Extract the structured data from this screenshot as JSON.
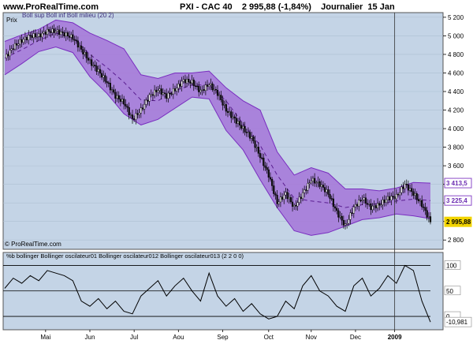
{
  "header": {
    "site": "www.ProRealTime.com",
    "title": "PXI - CAC 40    2 995,88 (-1,84%)    Journalier  15 Jan"
  },
  "price_panel": {
    "label": "Prix",
    "legend": "Boll sup Boll inf Boll milieu (20 2)",
    "copyright": "© ProRealTime.com",
    "y_ticks": [
      5200,
      5000,
      4800,
      4600,
      4400,
      4200,
      4000,
      3800,
      3600,
      3400,
      3200,
      3000,
      2800
    ],
    "y_tick_labels": [
      "5 200",
      "5 000",
      "4 800",
      "4 600",
      "4 400",
      "4 200",
      "4 000",
      "3 800",
      "3 600",
      "3 400",
      "3 200",
      "3 000",
      "2 800"
    ],
    "badges": [
      {
        "label": "3 413,5",
        "value": 3413.5,
        "color": "#8b4bc8"
      },
      {
        "label": "3 225,4",
        "value": 3225.4,
        "color": "#8b4bc8"
      },
      {
        "label": "2 995,88",
        "value": 2995.88,
        "color": "#f2d400"
      }
    ]
  },
  "osc_panel": {
    "legend": "%b bollinger Bollinger oscilateur01 Bollinger oscilateur012 Bollinger oscilateur013 (2 2 0 0)",
    "level_labels": [
      "100",
      "50",
      "0"
    ],
    "last_label": "-10,981"
  },
  "x_axis": {
    "labels": [
      "Mai",
      "Jun",
      "Jul",
      "Aou",
      "Sep",
      "Oct",
      "Nov",
      "Dec",
      "2009"
    ]
  },
  "colors": {
    "background": "#c4d4e6",
    "band_fill": "#a574d8",
    "band_edge": "#7a2ec0",
    "candle_up": "#f0f0f0",
    "candle_down": "#111111"
  },
  "chart_data": {
    "type": "candlestick",
    "title": "PXI - CAC 40",
    "interval": "Journalier",
    "last_close": 2995.88,
    "change_pct": -1.84,
    "ylim": [
      2700,
      5250
    ],
    "x": [
      "Mai",
      "Jun",
      "Jul",
      "Aou",
      "Sep",
      "Oct",
      "Nov",
      "Dec",
      "2009"
    ],
    "close_path": [
      [
        0,
        4760
      ],
      [
        5,
        4880
      ],
      [
        10,
        4950
      ],
      [
        15,
        5000
      ],
      [
        20,
        5000
      ],
      [
        25,
        5050
      ],
      [
        30,
        5050
      ],
      [
        35,
        5020
      ],
      [
        40,
        4980
      ],
      [
        45,
        4850
      ],
      [
        50,
        4720
      ],
      [
        55,
        4620
      ],
      [
        60,
        4500
      ],
      [
        65,
        4350
      ],
      [
        70,
        4280
      ],
      [
        75,
        4100
      ],
      [
        80,
        4200
      ],
      [
        85,
        4350
      ],
      [
        90,
        4420
      ],
      [
        95,
        4350
      ],
      [
        100,
        4420
      ],
      [
        105,
        4520
      ],
      [
        110,
        4500
      ],
      [
        115,
        4400
      ],
      [
        120,
        4480
      ],
      [
        125,
        4380
      ],
      [
        130,
        4200
      ],
      [
        135,
        4100
      ],
      [
        140,
        4000
      ],
      [
        145,
        3900
      ],
      [
        150,
        3700
      ],
      [
        155,
        3500
      ],
      [
        160,
        3200
      ],
      [
        165,
        3300
      ],
      [
        170,
        3150
      ],
      [
        175,
        3300
      ],
      [
        180,
        3450
      ],
      [
        185,
        3400
      ],
      [
        190,
        3300
      ],
      [
        195,
        3100
      ],
      [
        200,
        2950
      ],
      [
        205,
        3150
      ],
      [
        210,
        3250
      ],
      [
        215,
        3150
      ],
      [
        220,
        3180
      ],
      [
        225,
        3250
      ],
      [
        230,
        3270
      ],
      [
        235,
        3400
      ],
      [
        240,
        3300
      ],
      [
        245,
        3180
      ],
      [
        250,
        2996
      ]
    ],
    "bollinger_upper": [
      [
        0,
        4940
      ],
      [
        10,
        5010
      ],
      [
        20,
        5070
      ],
      [
        30,
        5170
      ],
      [
        40,
        5140
      ],
      [
        50,
        5030
      ],
      [
        60,
        4950
      ],
      [
        70,
        4860
      ],
      [
        80,
        4580
      ],
      [
        90,
        4540
      ],
      [
        100,
        4600
      ],
      [
        110,
        4600
      ],
      [
        120,
        4620
      ],
      [
        130,
        4440
      ],
      [
        140,
        4300
      ],
      [
        150,
        4200
      ],
      [
        160,
        3750
      ],
      [
        170,
        3500
      ],
      [
        180,
        3580
      ],
      [
        190,
        3520
      ],
      [
        200,
        3350
      ],
      [
        210,
        3350
      ],
      [
        220,
        3330
      ],
      [
        230,
        3360
      ],
      [
        240,
        3420
      ],
      [
        250,
        3413.5
      ]
    ],
    "bollinger_lower": [
      [
        0,
        4580
      ],
      [
        10,
        4700
      ],
      [
        20,
        4830
      ],
      [
        30,
        4880
      ],
      [
        40,
        4820
      ],
      [
        50,
        4560
      ],
      [
        60,
        4380
      ],
      [
        70,
        4160
      ],
      [
        80,
        4040
      ],
      [
        90,
        4100
      ],
      [
        100,
        4220
      ],
      [
        110,
        4340
      ],
      [
        120,
        4320
      ],
      [
        130,
        3980
      ],
      [
        140,
        3770
      ],
      [
        150,
        3450
      ],
      [
        160,
        3150
      ],
      [
        170,
        2900
      ],
      [
        180,
        2850
      ],
      [
        190,
        2880
      ],
      [
        200,
        2950
      ],
      [
        210,
        3020
      ],
      [
        220,
        3040
      ],
      [
        230,
        3080
      ],
      [
        240,
        3060
      ],
      [
        250,
        3030
      ]
    ],
    "bollinger_middle": [
      [
        0,
        4760
      ],
      [
        10,
        4850
      ],
      [
        20,
        4950
      ],
      [
        30,
        5030
      ],
      [
        40,
        4980
      ],
      [
        50,
        4800
      ],
      [
        60,
        4660
      ],
      [
        70,
        4500
      ],
      [
        80,
        4310
      ],
      [
        90,
        4300
      ],
      [
        100,
        4410
      ],
      [
        110,
        4470
      ],
      [
        120,
        4470
      ],
      [
        130,
        4300
      ],
      [
        140,
        4050
      ],
      [
        150,
        3820
      ],
      [
        160,
        3500
      ],
      [
        170,
        3250
      ],
      [
        180,
        3220
      ],
      [
        190,
        3200
      ],
      [
        200,
        3150
      ],
      [
        210,
        3180
      ],
      [
        220,
        3190
      ],
      [
        230,
        3220
      ],
      [
        240,
        3240
      ],
      [
        250,
        3225.4
      ]
    ],
    "oscillator": {
      "name": "%b bollinger",
      "levels": [
        100,
        50,
        0
      ],
      "last": -10.981,
      "values": [
        [
          0,
          55
        ],
        [
          5,
          75
        ],
        [
          10,
          65
        ],
        [
          15,
          80
        ],
        [
          20,
          70
        ],
        [
          25,
          90
        ],
        [
          30,
          85
        ],
        [
          35,
          80
        ],
        [
          40,
          70
        ],
        [
          45,
          30
        ],
        [
          50,
          20
        ],
        [
          55,
          35
        ],
        [
          60,
          15
        ],
        [
          65,
          30
        ],
        [
          70,
          10
        ],
        [
          75,
          5
        ],
        [
          80,
          40
        ],
        [
          85,
          55
        ],
        [
          90,
          70
        ],
        [
          95,
          40
        ],
        [
          100,
          60
        ],
        [
          105,
          75
        ],
        [
          110,
          50
        ],
        [
          115,
          30
        ],
        [
          120,
          85
        ],
        [
          125,
          40
        ],
        [
          130,
          20
        ],
        [
          135,
          35
        ],
        [
          140,
          10
        ],
        [
          145,
          25
        ],
        [
          150,
          5
        ],
        [
          155,
          -5
        ],
        [
          160,
          0
        ],
        [
          165,
          30
        ],
        [
          170,
          15
        ],
        [
          175,
          60
        ],
        [
          180,
          80
        ],
        [
          185,
          50
        ],
        [
          190,
          40
        ],
        [
          195,
          20
        ],
        [
          200,
          10
        ],
        [
          205,
          60
        ],
        [
          210,
          75
        ],
        [
          215,
          40
        ],
        [
          220,
          55
        ],
        [
          225,
          80
        ],
        [
          230,
          65
        ],
        [
          235,
          100
        ],
        [
          240,
          90
        ],
        [
          245,
          30
        ],
        [
          250,
          -10.981
        ]
      ]
    }
  }
}
